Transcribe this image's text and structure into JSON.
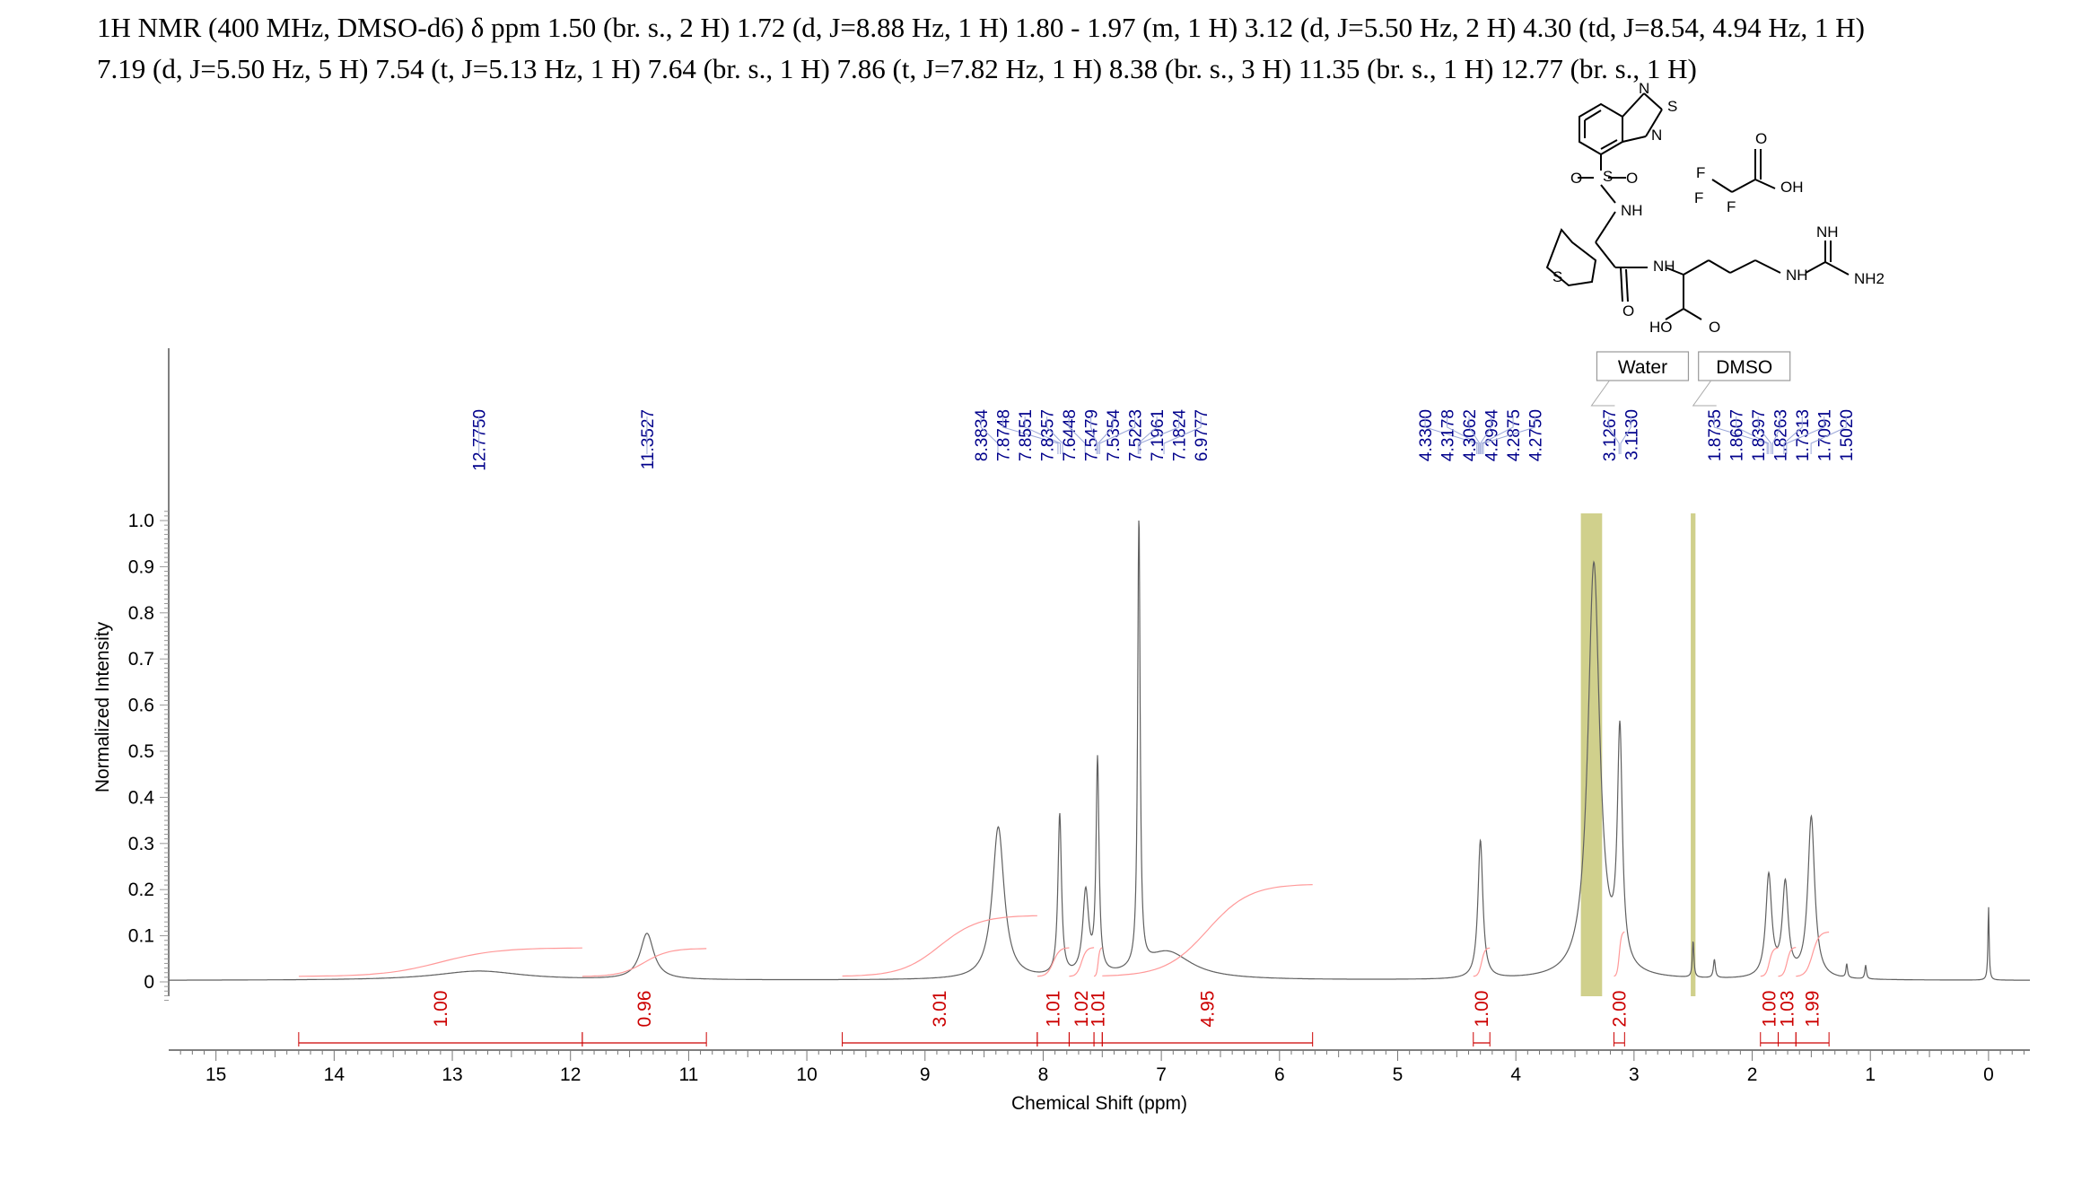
{
  "header": {
    "line1": "1H NMR (400 MHz, DMSO-d6) δ ppm 1.50 (br. s., 2 H) 1.72 (d, J=8.88 Hz, 1 H) 1.80 - 1.97 (m, 1 H) 3.12 (d, J=5.50 Hz, 2 H) 4.30 (td, J=8.54, 4.94 Hz, 1 H)",
    "line2": "7.19 (d, J=5.50 Hz, 5 H) 7.54 (t, J=5.13 Hz, 1 H) 7.64 (br. s., 1 H) 7.86 (t, J=7.82 Hz, 1 H) 8.38 (br. s., 3 H) 11.35 (br. s., 1 H) 12.77 (br. s., 1 H)"
  },
  "chart_data": {
    "type": "line",
    "xlabel": "Chemical Shift (ppm)",
    "ylabel": "Normalized Intensity",
    "xlim": [
      15.4,
      -0.35
    ],
    "ylim": [
      0,
      1.0
    ],
    "x_ticks": [
      15,
      14,
      13,
      12,
      11,
      10,
      9,
      8,
      7,
      6,
      5,
      4,
      3,
      2,
      1,
      0
    ],
    "y_ticks": [
      0,
      0.1,
      0.2,
      0.3,
      0.4,
      0.5,
      0.6,
      0.7,
      0.8,
      0.9,
      1.0
    ],
    "y_tick_labels": [
      "0",
      "0.1",
      "0.2",
      "0.3",
      "0.4",
      "0.5",
      "0.6",
      "0.7",
      "0.8",
      "0.9",
      "1.0"
    ],
    "peaks": [
      {
        "ppm": 12.775,
        "height": 0.02,
        "width": 0.45
      },
      {
        "ppm": 11.3527,
        "height": 0.1,
        "width": 0.07
      },
      {
        "ppm": 8.38,
        "height": 0.33,
        "width": 0.06
      },
      {
        "ppm": 7.86,
        "height": 0.35,
        "width": 0.018
      },
      {
        "ppm": 7.64,
        "height": 0.18,
        "width": 0.03
      },
      {
        "ppm": 7.54,
        "height": 0.46,
        "width": 0.015
      },
      {
        "ppm": 7.19,
        "height": 1.0,
        "width": 0.012
      },
      {
        "ppm": 6.95,
        "height": 0.06,
        "width": 0.25
      },
      {
        "ppm": 4.3,
        "height": 0.3,
        "width": 0.025
      },
      {
        "ppm": 3.34,
        "height": 0.9,
        "width": 0.06
      },
      {
        "ppm": 3.12,
        "height": 0.5,
        "width": 0.025
      },
      {
        "ppm": 2.5,
        "height": 0.08,
        "width": 0.008
      },
      {
        "ppm": 2.32,
        "height": 0.04,
        "width": 0.01
      },
      {
        "ppm": 1.86,
        "height": 0.22,
        "width": 0.03
      },
      {
        "ppm": 1.72,
        "height": 0.2,
        "width": 0.03
      },
      {
        "ppm": 1.5,
        "height": 0.35,
        "width": 0.035
      },
      {
        "ppm": 1.2,
        "height": 0.03,
        "width": 0.008
      },
      {
        "ppm": 1.04,
        "height": 0.03,
        "width": 0.008
      },
      {
        "ppm": 0.0,
        "height": 0.16,
        "width": 0.006
      }
    ],
    "peak_labels": [
      {
        "group": [
          12.775
        ],
        "labels": [
          "12.7750"
        ]
      },
      {
        "group": [
          11.3527
        ],
        "labels": [
          "11.3527"
        ]
      },
      {
        "group": [
          8.3834,
          7.8748,
          7.8551,
          7.8357,
          7.6448,
          7.5479,
          7.5354,
          7.5223,
          7.1961,
          7.1824,
          6.9777
        ],
        "labels": [
          "8.3834",
          "7.8748",
          "7.8551",
          "7.8357",
          "7.6448",
          "7.5479",
          "7.5354",
          "7.5223",
          "7.1961",
          "7.1824",
          "6.9777"
        ]
      },
      {
        "group": [
          4.33,
          4.3178,
          4.3062,
          4.2994,
          4.2875,
          4.275
        ],
        "labels": [
          "4.3300",
          "4.3178",
          "4.3062",
          "4.2994",
          "4.2875",
          "4.2750"
        ]
      },
      {
        "group": [
          3.1267,
          3.113
        ],
        "labels": [
          "3.1267",
          "3.1130"
        ]
      },
      {
        "group": [
          1.8735,
          1.8607,
          1.8397,
          1.8263,
          1.7313,
          1.7091,
          1.502
        ],
        "labels": [
          "1.8735",
          "1.8607",
          "1.8397",
          "1.8263",
          "1.7313",
          "1.7091",
          "1.5020"
        ]
      }
    ],
    "integrals": [
      {
        "from": 14.3,
        "to": 11.9,
        "value": "1.00"
      },
      {
        "from": 11.9,
        "to": 10.85,
        "value": "0.96"
      },
      {
        "from": 9.7,
        "to": 8.05,
        "value": "3.01"
      },
      {
        "from": 8.05,
        "to": 7.78,
        "value": "1.01"
      },
      {
        "from": 7.78,
        "to": 7.57,
        "value": "1.02"
      },
      {
        "from": 7.57,
        "to": 7.5,
        "value": "1.01"
      },
      {
        "from": 7.5,
        "to": 5.72,
        "value": "4.95"
      },
      {
        "from": 4.36,
        "to": 4.22,
        "value": "1.00"
      },
      {
        "from": 3.17,
        "to": 3.08,
        "value": "2.00"
      },
      {
        "from": 1.93,
        "to": 1.78,
        "value": "1.00"
      },
      {
        "from": 1.78,
        "to": 1.63,
        "value": "1.03"
      },
      {
        "from": 1.63,
        "to": 1.35,
        "value": "1.99"
      }
    ],
    "solvent_regions": [
      {
        "label": "Water",
        "from": 3.45,
        "to": 3.27
      },
      {
        "label": "DMSO",
        "from": 2.52,
        "to": 2.48
      }
    ],
    "colors": {
      "spectrum": "#606060",
      "peak_label": "#00008b",
      "integral": "#cc0000",
      "integral_curve": "#ff9999",
      "solvent_highlight": "#c8c878"
    }
  },
  "structure": {
    "atom_labels": [
      "N",
      "S",
      "N",
      "S",
      "O",
      "O",
      "NH",
      "S",
      "O",
      "NH",
      "HO",
      "O",
      "NH",
      "NH",
      "NH2",
      "F",
      "F",
      "F",
      "O",
      "OH"
    ]
  }
}
